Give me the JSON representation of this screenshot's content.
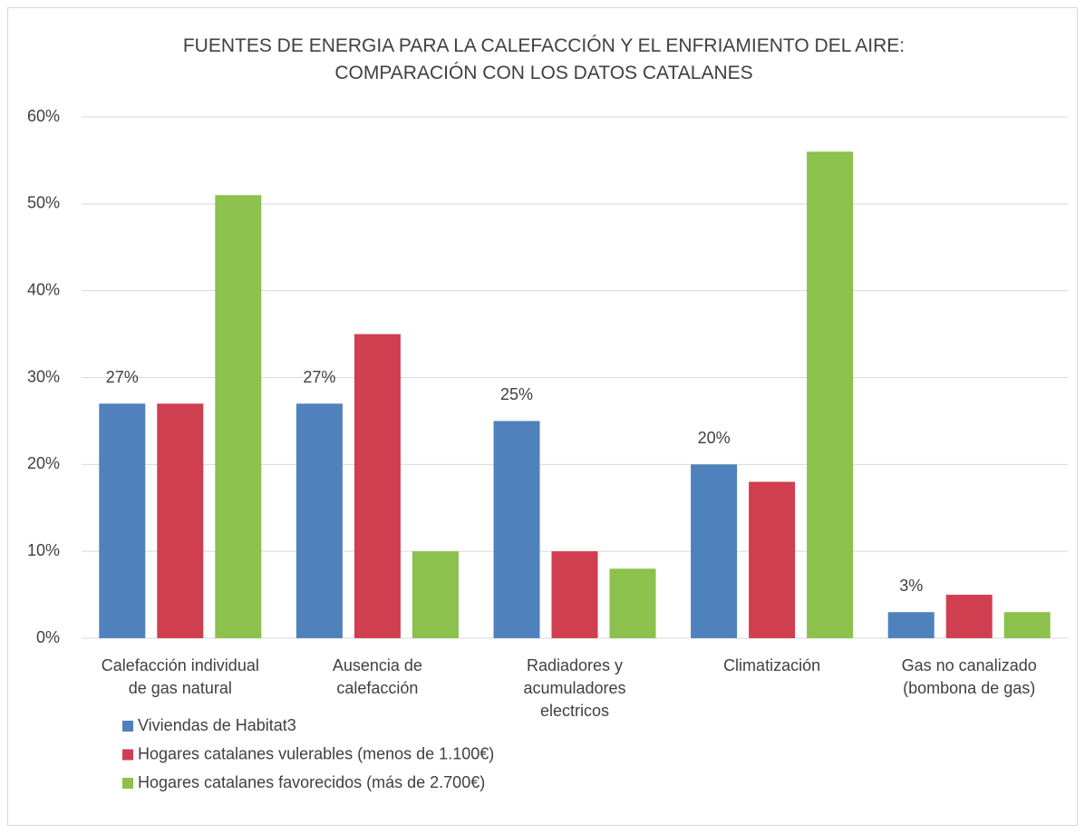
{
  "chart_data": {
    "type": "bar",
    "title": "FUENTES DE ENERGIA PARA LA CALEFACCIÓN  Y EL ENFRIAMIENTO DEL AIRE:\nCOMPARACIÓN  CON LOS DATOS CATALANES",
    "categories": [
      "Calefacción individual\nde gas natural",
      "Ausencia de\ncalefacción",
      "Radiadores y\nacumuladores\nelectricos",
      "Climatización",
      "Gas no canalizado\n(bombona de gas)"
    ],
    "series": [
      {
        "name": "Viviendas de Habitat3",
        "color": "#4f81bd",
        "values": [
          27,
          27,
          25,
          20,
          3
        ],
        "value_labels": [
          "27%",
          "27%",
          "25%",
          "20%",
          "3%"
        ]
      },
      {
        "name": "Hogares catalanes vulerables (menos de 1.100€)",
        "color": "#cf3f4f",
        "values": [
          27,
          35,
          10,
          18,
          5
        ]
      },
      {
        "name": "Hogares catalanes favorecidos (más de 2.700€)",
        "color": "#8bc14c",
        "values": [
          51,
          10,
          8,
          56,
          3
        ]
      }
    ],
    "ylim": [
      0,
      60
    ],
    "yticks": [
      {
        "value": 0,
        "label": "0%"
      },
      {
        "value": 10,
        "label": "10%"
      },
      {
        "value": 20,
        "label": "20%"
      },
      {
        "value": 30,
        "label": "30%"
      },
      {
        "value": 40,
        "label": "40%"
      },
      {
        "value": 50,
        "label": "50%"
      },
      {
        "value": 60,
        "label": "60%"
      }
    ],
    "grid": true,
    "legend": "bottom-left"
  }
}
